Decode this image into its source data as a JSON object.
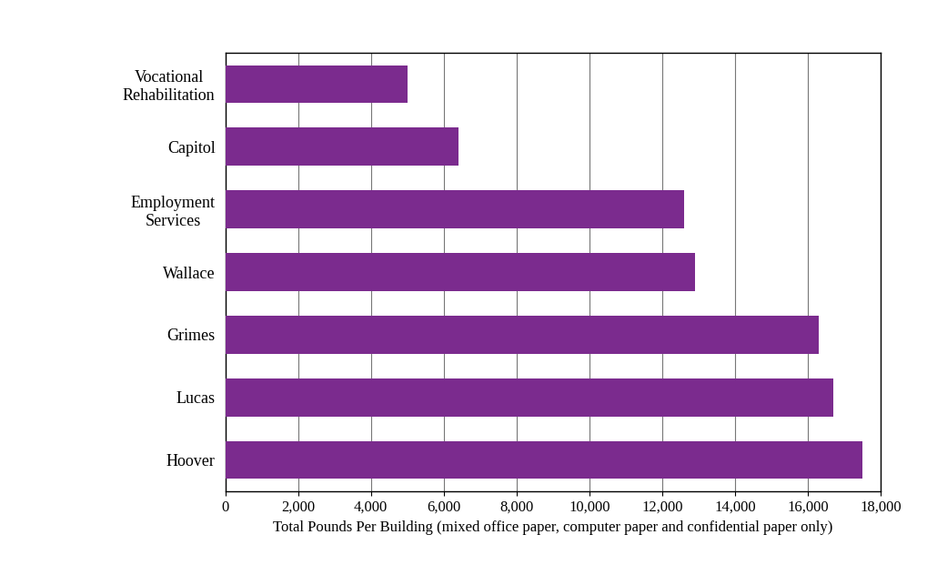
{
  "chart_data": {
    "type": "bar",
    "orientation": "horizontal",
    "categories": [
      "Vocational Rehabilitation",
      "Capitol",
      "Employment Services",
      "Wallace",
      "Grimes",
      "Lucas",
      "Hoover"
    ],
    "values": [
      5000,
      6400,
      12600,
      12900,
      16300,
      16700,
      17500
    ],
    "color": "#7b2b8e",
    "x_label": "Total Pounds Per Building (mixed office paper, computer paper and confidential paper only)",
    "xlim": [
      0,
      18000
    ],
    "xticks": [
      0,
      {
        "value": 2000,
        "label": "2,000"
      },
      {
        "value": 4000,
        "label": "4,000"
      },
      {
        "value": 6000,
        "label": "6,000"
      },
      {
        "value": 8000,
        "label": "8,000"
      },
      {
        "value": 10000,
        "label": "10,000"
      },
      {
        "value": 12000,
        "label": "12,000"
      },
      {
        "value": 14000,
        "label": "14,000"
      },
      {
        "value": 16000,
        "label": "16,000"
      },
      {
        "value": 18000,
        "label": "18,000"
      }
    ],
    "grid": true
  }
}
